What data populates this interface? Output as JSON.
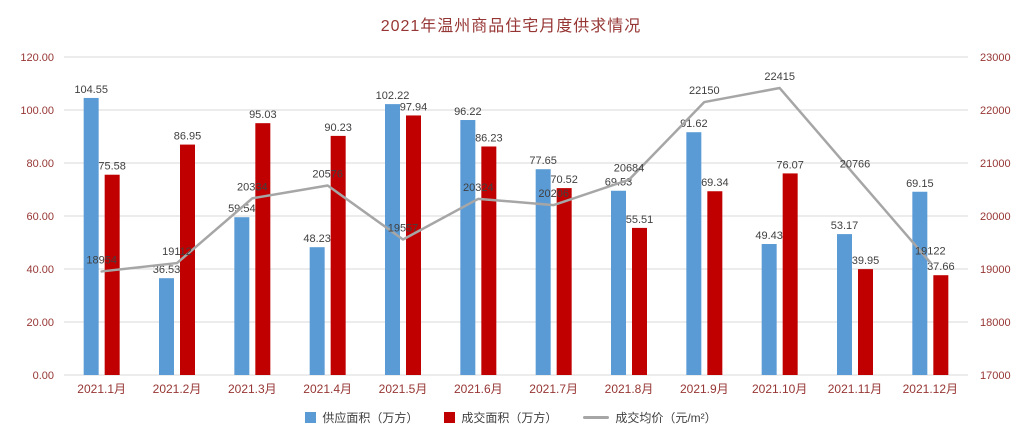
{
  "chart_data": {
    "type": "combo",
    "title": "2021年温州商品住宅月度供求情况",
    "categories": [
      "2021.1月",
      "2021.2月",
      "2021.3月",
      "2021.4月",
      "2021.5月",
      "2021.6月",
      "2021.7月",
      "2021.8月",
      "2021.9月",
      "2021.10月",
      "2021.11月",
      "2021.12月"
    ],
    "series": [
      {
        "name": "供应面积（万方）",
        "chart_type": "bar",
        "axis": "left",
        "color": "#5B9BD5",
        "values": [
          104.55,
          36.53,
          59.54,
          48.23,
          102.22,
          96.22,
          77.65,
          69.53,
          91.62,
          49.43,
          53.17,
          69.15
        ]
      },
      {
        "name": "成交面积（万方）",
        "chart_type": "bar",
        "axis": "left",
        "color": "#C00000",
        "values": [
          75.58,
          86.95,
          95.03,
          90.23,
          97.94,
          86.23,
          70.52,
          55.51,
          69.34,
          76.07,
          39.95,
          37.66
        ]
      },
      {
        "name": "成交均价（元/m²）",
        "chart_type": "line",
        "axis": "right",
        "color": "#A6A6A6",
        "values": [
          18954,
          19112,
          20334,
          20576,
          19557,
          20324,
          20206,
          20684,
          22150,
          22415,
          20766,
          19122
        ]
      }
    ],
    "left_axis": {
      "min": 0,
      "max": 120,
      "step": 20,
      "decimals": 2,
      "tick_labels": [
        "0.00",
        "20.00",
        "40.00",
        "60.00",
        "80.00",
        "100.00",
        "120.00"
      ]
    },
    "right_axis": {
      "min": 17000,
      "max": 23000,
      "step": 1000,
      "decimals": 0,
      "tick_labels": [
        "17000",
        "18000",
        "19000",
        "20000",
        "21000",
        "22000",
        "23000"
      ]
    },
    "grid": true,
    "legend_position": "bottom",
    "colors": {
      "axis_text": "#963634",
      "data_label": "#404040",
      "gridline": "#D9D9D9",
      "background": "#FFFFFF"
    }
  }
}
